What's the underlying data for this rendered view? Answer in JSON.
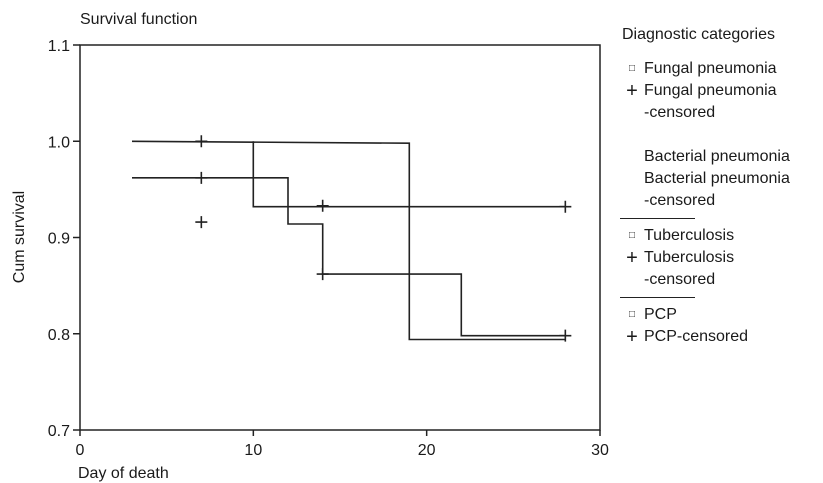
{
  "chart_data": {
    "type": "line",
    "title": "Survival function",
    "xlabel": "Day of death",
    "ylabel": "Cum survival",
    "xlim": [
      0,
      30
    ],
    "ylim": [
      0.7,
      1.1
    ],
    "xticks": [
      "0",
      "10",
      "20",
      "30"
    ],
    "yticks": [
      "0.7",
      "0.8",
      "0.9",
      "1.0",
      "1.1"
    ],
    "grid": false,
    "legend_position": "right",
    "series": [
      {
        "name": "Tuberculosis",
        "steps": [
          [
            3,
            1.0
          ],
          [
            19,
            0.998
          ],
          [
            19,
            0.794
          ],
          [
            28,
            0.794
          ]
        ],
        "censored": [
          [
            7,
            1.0
          ]
        ]
      },
      {
        "name": "PCP",
        "steps": [
          [
            3,
            0.962
          ],
          [
            12,
            0.962
          ],
          [
            12,
            0.914
          ],
          [
            14,
            0.914
          ],
          [
            14,
            0.862
          ],
          [
            22,
            0.862
          ],
          [
            22,
            0.798
          ],
          [
            28,
            0.798
          ]
        ],
        "censored": [
          [
            7,
            0.962
          ],
          [
            14,
            0.862
          ],
          [
            28,
            0.798
          ]
        ]
      },
      {
        "name": "Fungal pneumonia",
        "steps": [
          [
            10,
            1.0
          ],
          [
            10,
            0.932
          ],
          [
            28,
            0.932
          ]
        ],
        "censored": [
          [
            14,
            0.933
          ],
          [
            28,
            0.932
          ]
        ]
      },
      {
        "name": "Bacterial pneumonia",
        "steps": [],
        "censored": [
          [
            7,
            0.916
          ]
        ]
      }
    ]
  },
  "legend": {
    "title": "Diagnostic categories",
    "groups": [
      {
        "rule": false,
        "entries": [
          {
            "symbol": "square",
            "lines": [
              "Fungal pneumonia"
            ]
          },
          {
            "symbol": "plus",
            "lines": [
              "Fungal pneumonia",
              "-censored"
            ]
          }
        ]
      },
      {
        "rule": false,
        "spacer": true,
        "entries": [
          {
            "symbol": "none",
            "lines": [
              "Bacterial pneumonia"
            ]
          },
          {
            "symbol": "none",
            "lines": [
              "Bacterial pneumonia",
              "-censored"
            ]
          }
        ]
      },
      {
        "rule": true,
        "entries": [
          {
            "symbol": "square",
            "lines": [
              "Tuberculosis"
            ]
          },
          {
            "symbol": "plus",
            "lines": [
              "Tuberculosis",
              "-censored"
            ]
          }
        ]
      },
      {
        "rule": true,
        "entries": [
          {
            "symbol": "square",
            "lines": [
              "PCP"
            ]
          },
          {
            "symbol": "plus",
            "lines": [
              "PCP-censored"
            ]
          }
        ]
      }
    ]
  }
}
